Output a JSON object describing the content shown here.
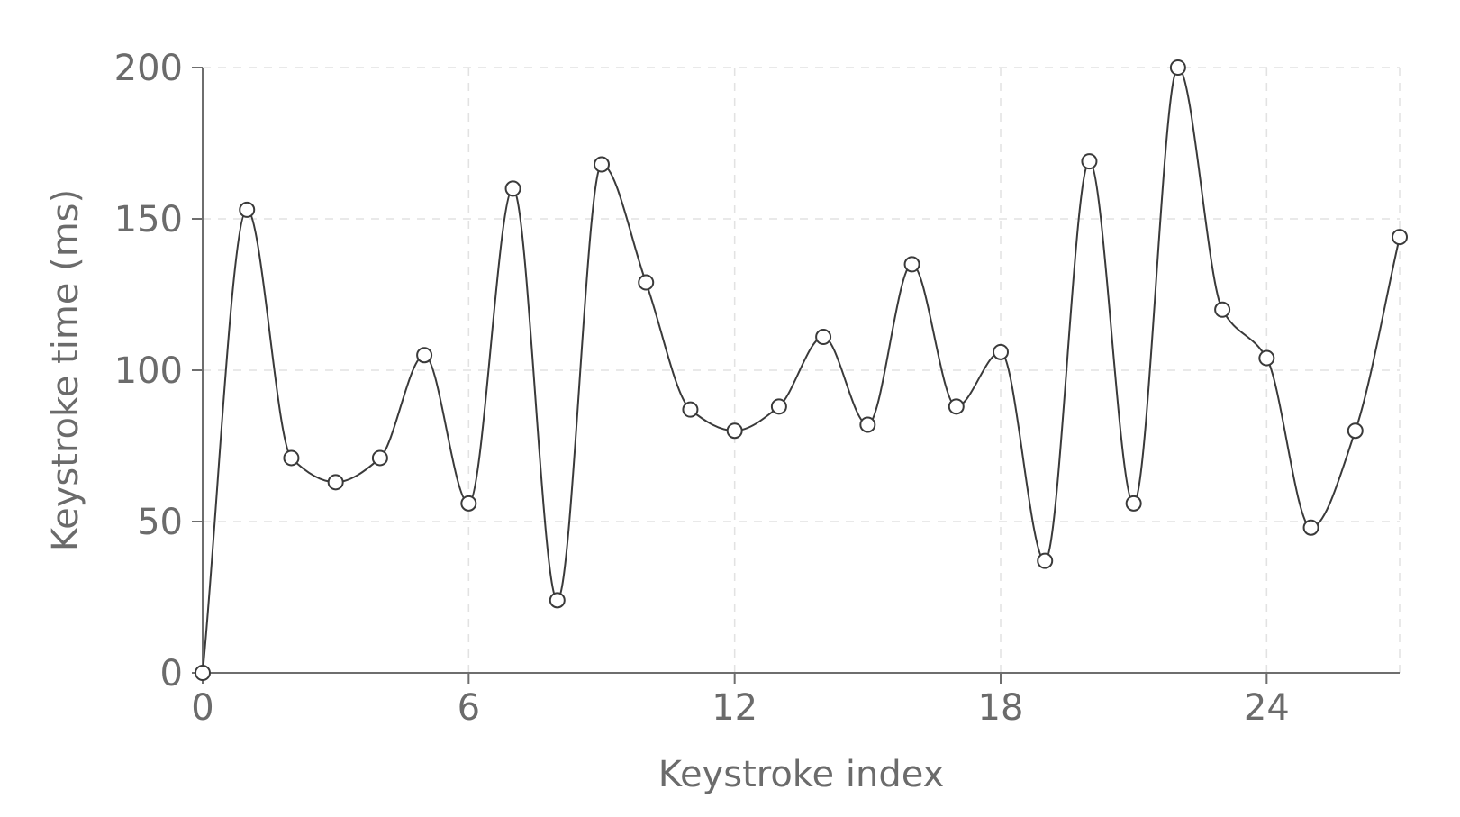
{
  "chart_data": {
    "type": "line",
    "title": "",
    "xlabel": "Keystroke index",
    "ylabel": "Keystroke time (ms)",
    "xlim": [
      0,
      27
    ],
    "ylim": [
      0,
      200
    ],
    "x_ticks": [
      0,
      6,
      12,
      18,
      24
    ],
    "x_tick_labels": [
      "0",
      "6",
      "12",
      "18",
      "24"
    ],
    "y_ticks": [
      0,
      50,
      100,
      150,
      200
    ],
    "y_tick_labels": [
      "0",
      "50",
      "100",
      "150",
      "200"
    ],
    "grid": true,
    "legend": "none",
    "line_color": "#3a3a3a",
    "marker_fill": "#ffffff",
    "x": [
      0,
      1,
      2,
      3,
      4,
      5,
      6,
      7,
      8,
      9,
      10,
      11,
      12,
      13,
      14,
      15,
      16,
      17,
      18,
      19,
      20,
      21,
      22,
      23,
      24,
      25,
      26,
      27
    ],
    "series": [
      {
        "values": [
          0,
          153,
          71,
          63,
          71,
          105,
          56,
          160,
          24,
          168,
          129,
          87,
          80,
          88,
          111,
          82,
          135,
          88,
          106,
          37,
          169,
          56,
          200,
          120,
          104,
          48,
          80,
          144
        ]
      }
    ]
  }
}
